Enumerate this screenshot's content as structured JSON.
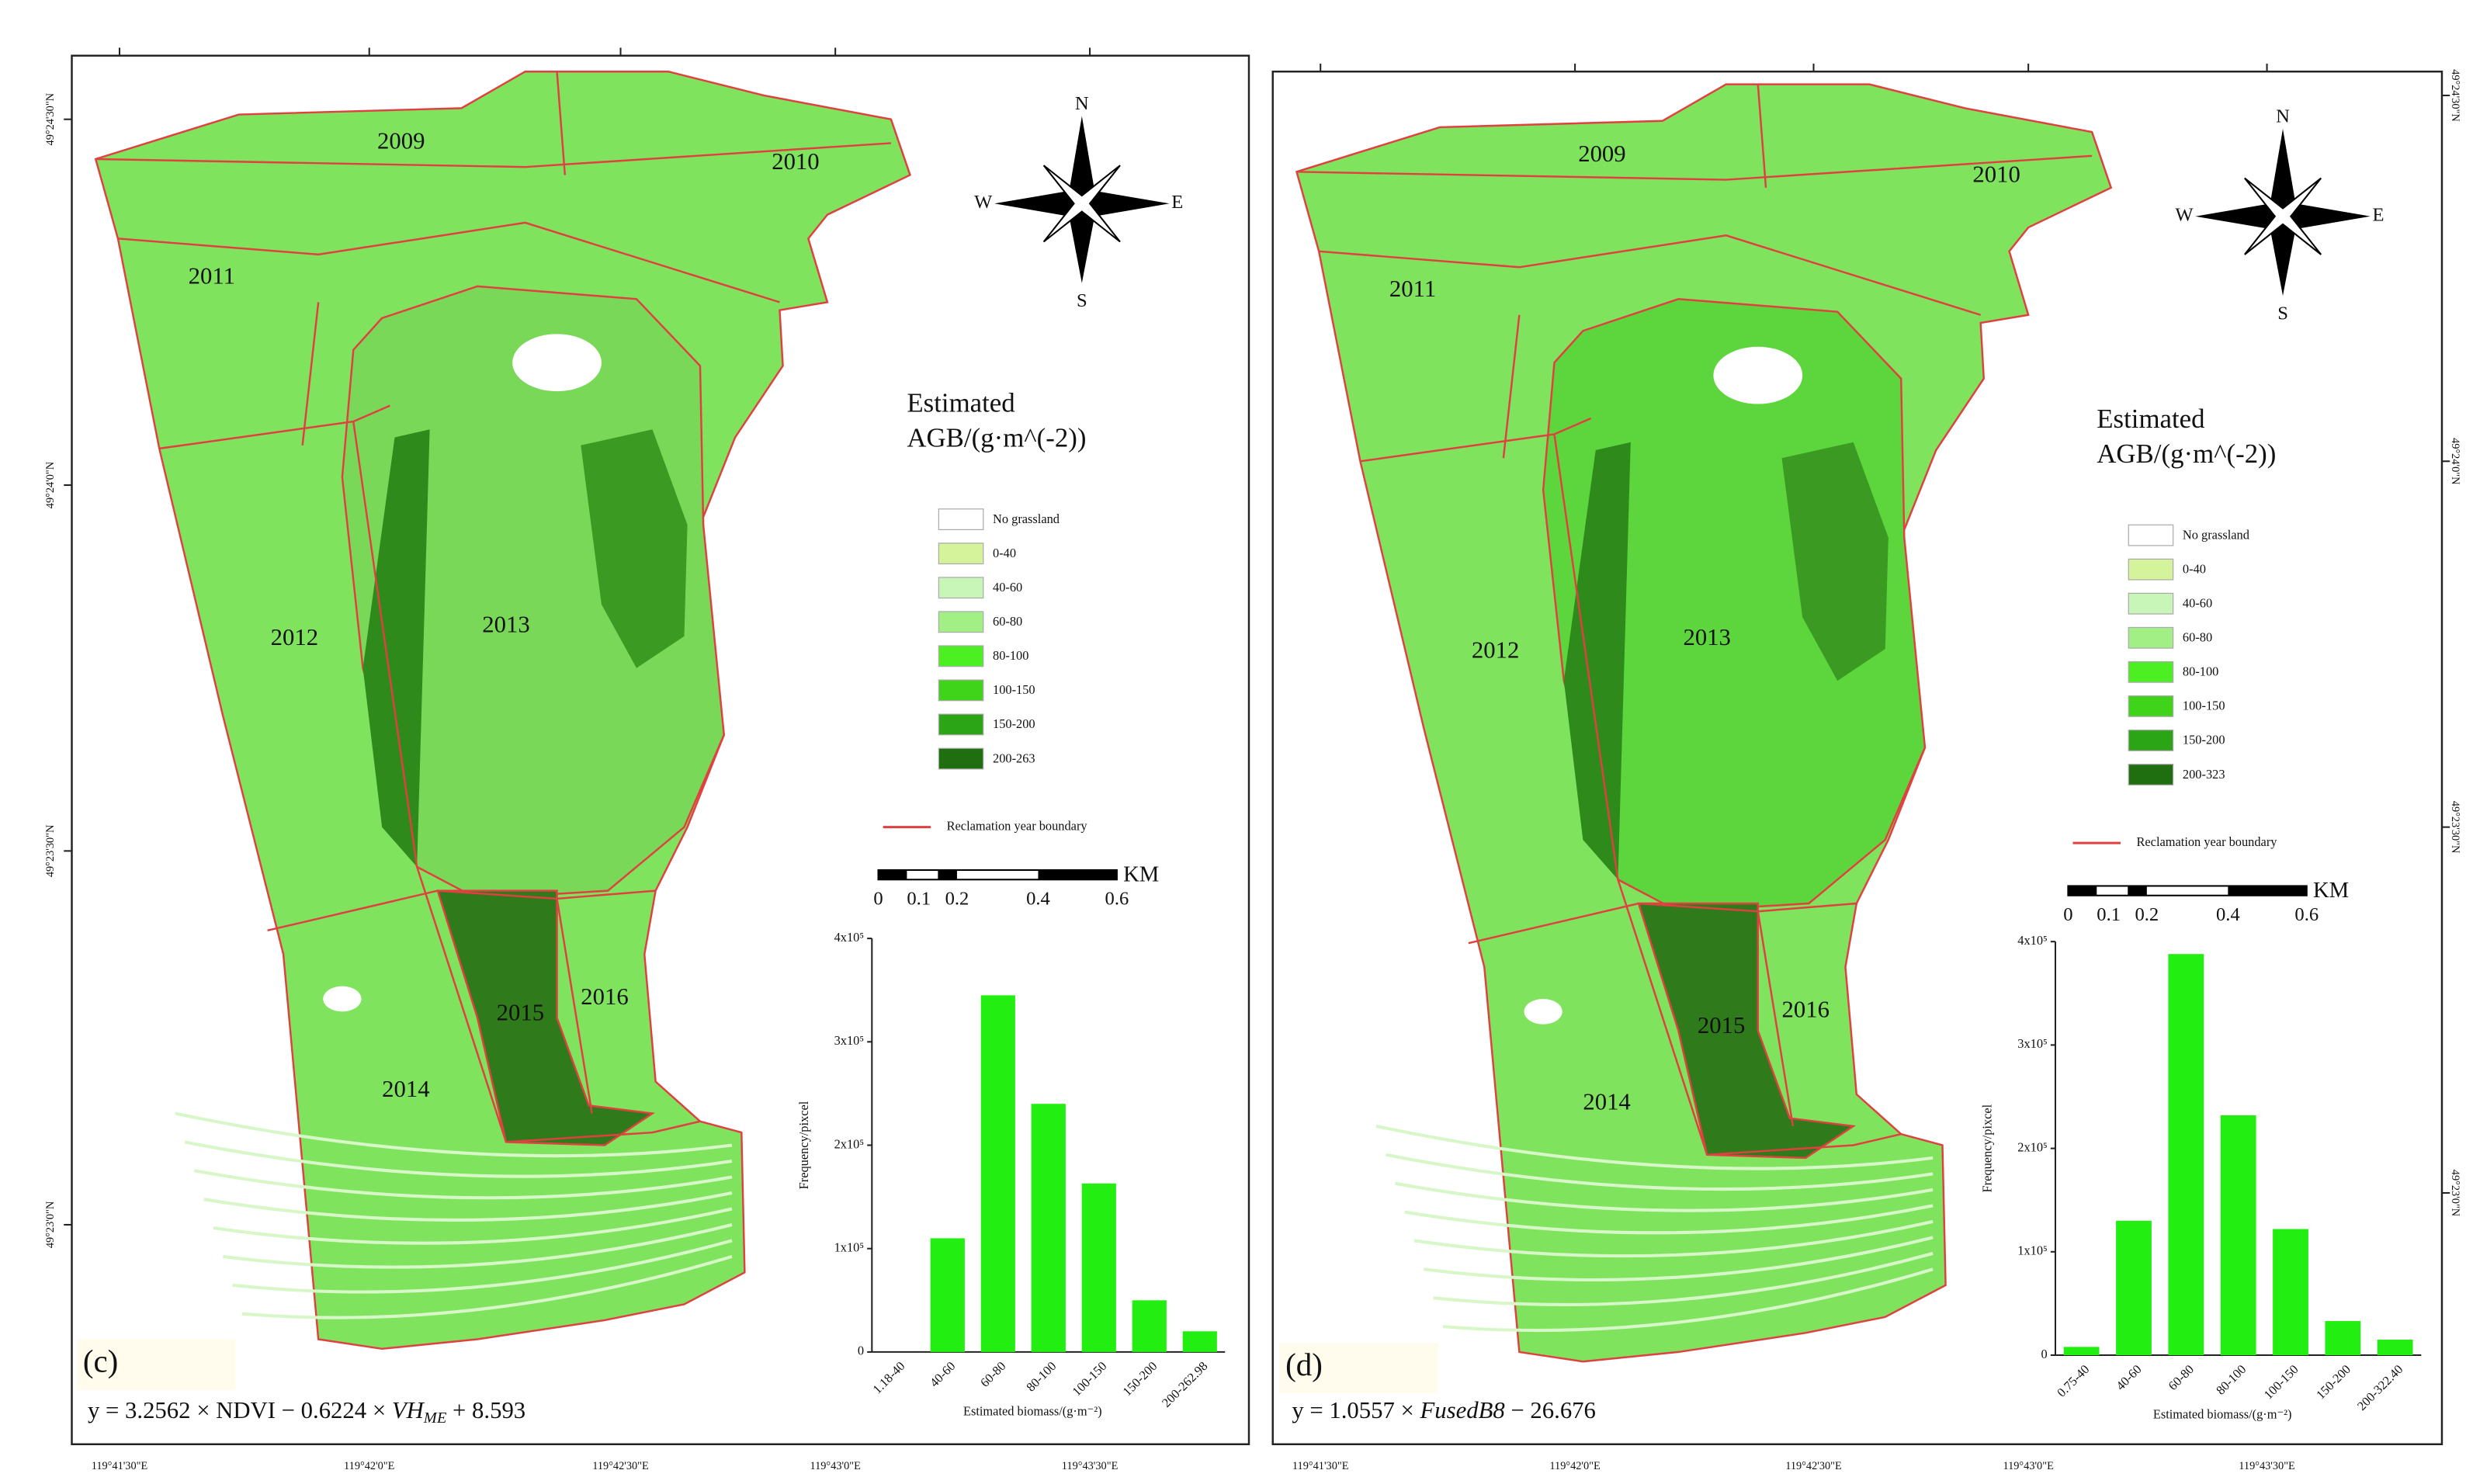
{
  "maps": [
    {
      "label": "(c)",
      "formula": [
        "y = 3.2562 × NDVI − 0.6224 × ",
        "VH",
        "ME",
        " + 8.593"
      ],
      "years": [
        "2009",
        "2010",
        "2011",
        "2012",
        "2013",
        "2014",
        "2015",
        "2016"
      ],
      "compass": [
        "N",
        "S",
        "W",
        "E"
      ],
      "legend_title": [
        "Estimated",
        "AGB/(g·m^(-2))"
      ],
      "legend": [
        {
          "label": "No grassland",
          "color": "#ffffff"
        },
        {
          "label": "0-40",
          "color": "#d4f39a"
        },
        {
          "label": "40-60",
          "color": "#c8f5b8"
        },
        {
          "label": "60-80",
          "color": "#a2ef86"
        },
        {
          "label": "80-100",
          "color": "#4cef22"
        },
        {
          "label": "100-150",
          "color": "#3fd41a"
        },
        {
          "label": "150-200",
          "color": "#2ba515"
        },
        {
          "label": "200-263",
          "color": "#1f6e10"
        }
      ],
      "boundary": "Reclamation year boundary",
      "scale": [
        "KM",
        "0",
        "0.1",
        "0.2",
        "0.4",
        "0.6"
      ],
      "lat_labels": [
        "49°24'30\"N",
        "49°24'0\"N",
        "49°23'30\"N",
        "49°23'0\"N"
      ],
      "lon_labels": [
        "119°41'30\"E",
        "119°42'0\"E",
        "119°42'30\"E",
        "119°43'0\"E",
        "119°43'30\"E"
      ]
    },
    {
      "label": "(d)",
      "formula": [
        "y = 1.0557 × ",
        "FusedB8",
        " − 26.676"
      ],
      "years": [
        "2009",
        "2010",
        "2011",
        "2012",
        "2013",
        "2014",
        "2015",
        "2016"
      ],
      "compass": [
        "N",
        "S",
        "W",
        "E"
      ],
      "legend_title": [
        "Estimated",
        "AGB/(g·m^(-2))"
      ],
      "legend": [
        {
          "label": "No grassland",
          "color": "#ffffff"
        },
        {
          "label": "0-40",
          "color": "#d4f39a"
        },
        {
          "label": "40-60",
          "color": "#c8f5b8"
        },
        {
          "label": "60-80",
          "color": "#a2ef86"
        },
        {
          "label": "80-100",
          "color": "#4cef22"
        },
        {
          "label": "100-150",
          "color": "#3fd41a"
        },
        {
          "label": "150-200",
          "color": "#2ba515"
        },
        {
          "label": "200-323",
          "color": "#1f6e10"
        }
      ],
      "boundary": "Reclamation year boundary",
      "scale": [
        "KM",
        "0",
        "0.1",
        "0.2",
        "0.4",
        "0.6"
      ],
      "lat_labels": [
        "49°24'30\"N",
        "49°24'0\"N",
        "49°23'30\"N",
        "49°23'0\"N"
      ],
      "lon_labels": [
        "119°41'30\"E",
        "119°42'0\"E",
        "119°42'30\"E",
        "119°43'0\"E",
        "119°43'30\"E"
      ]
    }
  ],
  "chart_data": [
    {
      "type": "bar",
      "color": "#22ee11",
      "y_label": "Frequency/pixcel",
      "x_label": "Estimated biomass/(g·m⁻²)",
      "categories": [
        "1.18-40",
        "40-60",
        "60-80",
        "80-100",
        "100-150",
        "150-200",
        "200-262.98"
      ],
      "values": [
        0,
        110000,
        345000,
        240000,
        163000,
        50000,
        20000
      ],
      "ylim": [
        0,
        400000
      ],
      "yticks": [
        0,
        {
          "value": 100000,
          "label": "1x10⁵"
        },
        {
          "value": 200000,
          "label": "2x10⁵"
        },
        {
          "value": 300000,
          "label": "3x10⁵"
        },
        {
          "value": 400000,
          "label": "4x10⁵"
        }
      ]
    },
    {
      "type": "bar",
      "color": "#22ee11",
      "y_label": "Frequency/pixcel",
      "x_label": "Estimated biomass/(g·m⁻²)",
      "categories": [
        "0.75-40",
        "40-60",
        "60-80",
        "80-100",
        "100-150",
        "150-200",
        "200-322.40"
      ],
      "values": [
        8000,
        130000,
        388000,
        232000,
        122000,
        33000,
        15000
      ],
      "ylim": [
        0,
        400000
      ],
      "yticks": [
        0,
        {
          "value": 100000,
          "label": "1x10⁵"
        },
        {
          "value": 200000,
          "label": "2x10⁵"
        },
        {
          "value": 300000,
          "label": "3x10⁵"
        },
        {
          "value": 400000,
          "label": "4x10⁵"
        }
      ]
    }
  ]
}
